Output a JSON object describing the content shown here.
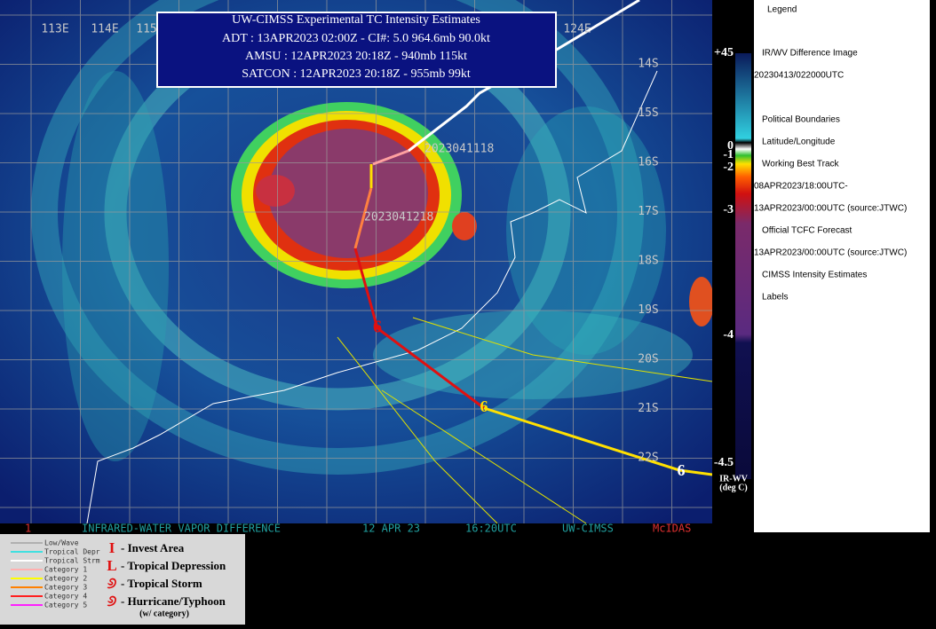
{
  "info_box": {
    "title": "UW-CIMSS Experimental TC Intensity Estimates",
    "lines": [
      "ADT : 13APR2023 02:00Z  -  CI#: 5.0   964.6mb   90.0kt",
      "AMSU : 12APR2023 20:18Z  -  940mb   115kt",
      "SATCON : 12APR2023 20:18Z  -  955mb   99kt"
    ]
  },
  "lon_labels": [
    "113E",
    "114E",
    "115",
    "124E"
  ],
  "lat_labels": [
    "14S",
    "15S",
    "16S",
    "17S",
    "18S",
    "19S",
    "20S",
    "21S",
    "22S"
  ],
  "track_labels": [
    "2023041118",
    "2023041218"
  ],
  "colorbar": {
    "labels": [
      "+45",
      "0",
      "-1",
      "-2",
      "-3",
      "-4",
      "-4.5"
    ],
    "units": [
      "IR-WV",
      "(deg C)"
    ]
  },
  "legend": {
    "title": "Legend",
    "items": [
      "IR/WV Difference Image",
      "20230413/022000UTC",
      "Political Boundaries",
      "Latitude/Longitude",
      "Working Best Track",
      "08APR2023/18:00UTC-",
      "13APR2023/00:00UTC   (source:JTWC)",
      "Official TCFC Forecast",
      "13APR2023/00:00UTC  (source:JTWC)",
      "CIMSS Intensity Estimates",
      "Labels"
    ]
  },
  "status_bar": [
    "1",
    "INFRARED-WATER VAPOR DIFFERENCE",
    "12 APR 23",
    "16:20UTC",
    "UW-CIMSS",
    "McIDAS"
  ],
  "track_key": {
    "lines": [
      "Low/Wave",
      "Tropical Depr",
      "Tropical Strm",
      "Category 1",
      "Category 2",
      "Category 3",
      "Category 4",
      "Category 5"
    ],
    "symbols": [
      {
        "glyph": "I",
        "label": "- Invest Area"
      },
      {
        "glyph": "L",
        "label": "- Tropical Depression"
      },
      {
        "glyph": null,
        "label": "- Tropical Storm"
      },
      {
        "glyph": null,
        "label": "- Hurricane/Typhoon"
      }
    ],
    "note": "(w/ category)"
  }
}
